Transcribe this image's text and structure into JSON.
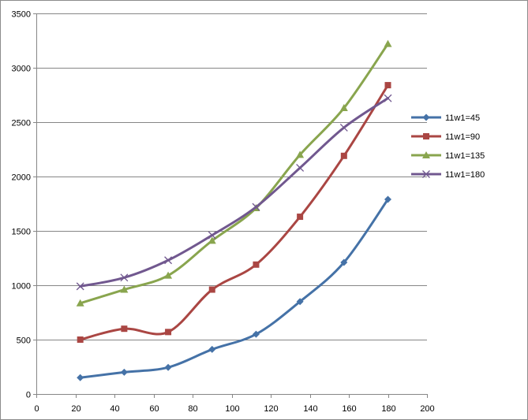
{
  "chart_data": {
    "type": "line",
    "smooth": true,
    "grid": "horizontal",
    "legend_position": "right",
    "xlim": [
      0,
      200
    ],
    "ylim": [
      0,
      3500
    ],
    "x_ticks": [
      0,
      20,
      40,
      60,
      80,
      100,
      120,
      140,
      160,
      180,
      200
    ],
    "y_ticks": [
      0,
      500,
      1000,
      1500,
      2000,
      2500,
      3000,
      3500
    ],
    "x": [
      22.5,
      45,
      67.5,
      90,
      112.5,
      135,
      157.5,
      180
    ],
    "series": [
      {
        "name": "11w1=45",
        "color": "#4572A7",
        "marker": "diamond",
        "values": [
          150,
          200,
          245,
          410,
          550,
          850,
          1210,
          1790
        ]
      },
      {
        "name": "11w1=90",
        "color": "#AA4643",
        "marker": "square",
        "values": [
          500,
          600,
          570,
          960,
          1190,
          1630,
          2190,
          2840
        ]
      },
      {
        "name": "11w1=135",
        "color": "#89A54E",
        "marker": "triangle",
        "values": [
          835,
          960,
          1090,
          1410,
          1710,
          2200,
          2630,
          3220
        ]
      },
      {
        "name": "11w1=180",
        "color": "#71588F",
        "marker": "x",
        "values": [
          990,
          1070,
          1230,
          1460,
          1720,
          2080,
          2450,
          2720
        ]
      }
    ]
  }
}
